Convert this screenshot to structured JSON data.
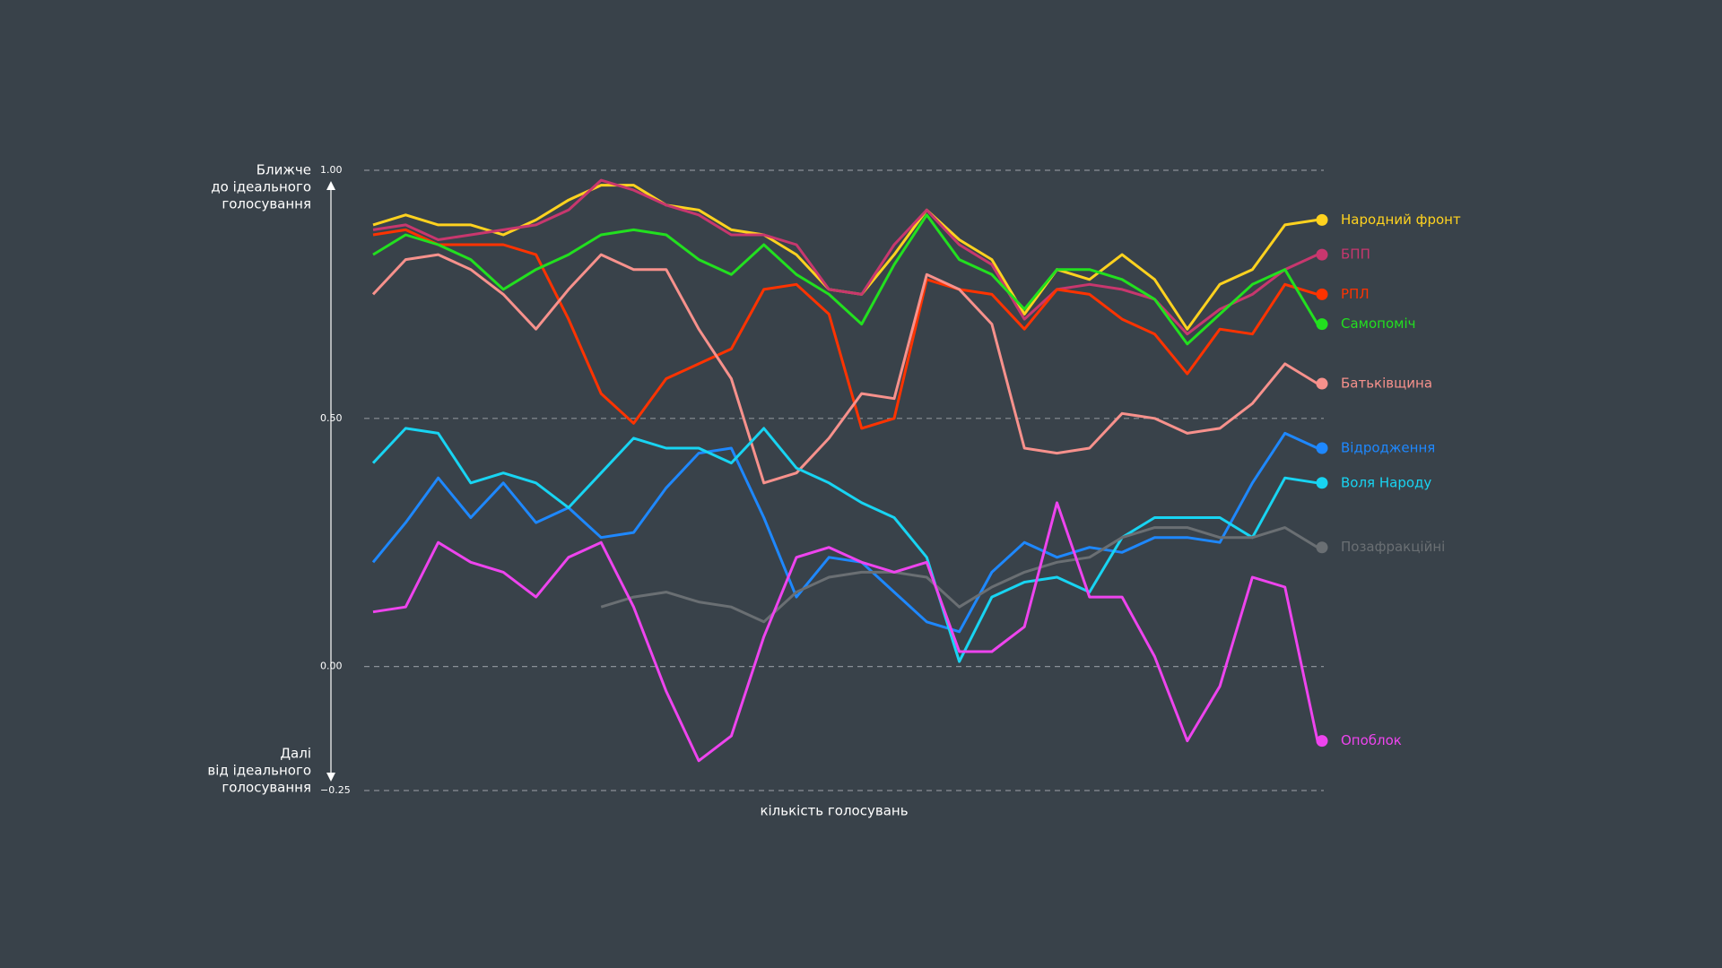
{
  "chart_data": {
    "type": "line",
    "xlabel": "кількість голосувань",
    "ylabel_top": [
      "Ближче",
      "до ідеального",
      "голосування"
    ],
    "ylabel_bottom": [
      "Далі",
      "від ідеального",
      "голосування"
    ],
    "ylim": [
      -0.25,
      1.0
    ],
    "yticks": [
      {
        "value": 1.0,
        "label": "1.00"
      },
      {
        "value": 0.5,
        "label": "0.50"
      },
      {
        "value": 0,
        "label": "0.00"
      },
      {
        "value": -0.25,
        "label": "−0.25"
      }
    ],
    "grid": true,
    "series": [
      {
        "name": "Народний фронт",
        "color": "#ffd21f",
        "values": [
          0.89,
          0.91,
          0.89,
          0.89,
          0.87,
          0.9,
          0.94,
          0.97,
          0.97,
          0.93,
          0.92,
          0.88,
          0.87,
          0.83,
          0.76,
          0.75,
          0.83,
          0.92,
          0.86,
          0.82,
          0.71,
          0.8,
          0.78,
          0.83,
          0.78,
          0.68,
          0.77,
          0.8,
          0.89,
          0.9
        ]
      },
      {
        "name": "БПП",
        "color": "#c8376e",
        "values": [
          0.88,
          0.89,
          0.86,
          0.87,
          0.88,
          0.89,
          0.92,
          0.98,
          0.96,
          0.93,
          0.91,
          0.87,
          0.87,
          0.85,
          0.76,
          0.75,
          0.85,
          0.92,
          0.85,
          0.81,
          0.7,
          0.76,
          0.77,
          0.76,
          0.74,
          0.67,
          0.72,
          0.75,
          0.8,
          0.83
        ]
      },
      {
        "name": "РПЛ",
        "color": "#ff3300",
        "values": [
          0.87,
          0.88,
          0.85,
          0.85,
          0.85,
          0.83,
          0.7,
          0.55,
          0.49,
          0.58,
          0.61,
          0.64,
          0.76,
          0.77,
          0.71,
          0.48,
          0.5,
          0.78,
          0.76,
          0.75,
          0.68,
          0.76,
          0.75,
          0.7,
          0.67,
          0.59,
          0.68,
          0.67,
          0.77,
          0.75
        ]
      },
      {
        "name": "Самопоміч",
        "color": "#22e01f",
        "values": [
          0.83,
          0.87,
          0.85,
          0.82,
          0.76,
          0.8,
          0.83,
          0.87,
          0.88,
          0.87,
          0.82,
          0.79,
          0.85,
          0.79,
          0.75,
          0.69,
          0.81,
          0.91,
          0.82,
          0.79,
          0.72,
          0.8,
          0.8,
          0.78,
          0.74,
          0.65,
          0.71,
          0.77,
          0.8,
          0.69
        ]
      },
      {
        "name": "Батьківщина",
        "color": "#f7918c",
        "values": [
          0.75,
          0.82,
          0.83,
          0.8,
          0.75,
          0.68,
          0.76,
          0.83,
          0.8,
          0.8,
          0.68,
          0.58,
          0.37,
          0.39,
          0.46,
          0.55,
          0.54,
          0.79,
          0.76,
          0.69,
          0.44,
          0.43,
          0.44,
          0.51,
          0.5,
          0.47,
          0.48,
          0.53,
          0.61,
          0.57
        ]
      },
      {
        "name": "Відродження",
        "color": "#1e88ff",
        "values": [
          0.21,
          0.29,
          0.38,
          0.3,
          0.37,
          0.29,
          0.32,
          0.26,
          0.27,
          0.36,
          0.43,
          0.44,
          0.3,
          0.14,
          0.22,
          0.21,
          0.15,
          0.09,
          0.07,
          0.19,
          0.25,
          0.22,
          0.24,
          0.23,
          0.26,
          0.26,
          0.25,
          0.37,
          0.47,
          0.44
        ]
      },
      {
        "name": "Воля Народу",
        "color": "#18d4f2",
        "values": [
          0.41,
          0.48,
          0.47,
          0.37,
          0.39,
          0.37,
          0.32,
          0.39,
          0.46,
          0.44,
          0.44,
          0.41,
          0.48,
          0.4,
          0.37,
          0.33,
          0.3,
          0.22,
          0.01,
          0.14,
          0.17,
          0.18,
          0.15,
          0.26,
          0.3,
          0.3,
          0.3,
          0.26,
          0.38,
          0.37
        ]
      },
      {
        "name": "Позафракційні",
        "color": "#6a6f73",
        "values": [
          null,
          null,
          null,
          null,
          null,
          null,
          null,
          0.12,
          0.14,
          0.15,
          0.13,
          0.12,
          0.09,
          0.15,
          0.18,
          0.19,
          0.19,
          0.18,
          0.12,
          0.16,
          0.19,
          0.21,
          0.22,
          0.26,
          0.28,
          0.28,
          0.26,
          0.26,
          0.28,
          0.24
        ]
      },
      {
        "name": "Опоблок",
        "color": "#ee44ee",
        "values": [
          0.11,
          0.12,
          0.25,
          0.21,
          0.19,
          0.14,
          0.22,
          0.25,
          0.12,
          -0.05,
          -0.19,
          -0.14,
          0.06,
          0.22,
          0.24,
          0.21,
          0.19,
          0.21,
          0.03,
          0.03,
          0.08,
          0.33,
          0.14,
          0.14,
          0.02,
          -0.15,
          -0.04,
          0.18,
          0.16,
          -0.15
        ]
      }
    ]
  }
}
